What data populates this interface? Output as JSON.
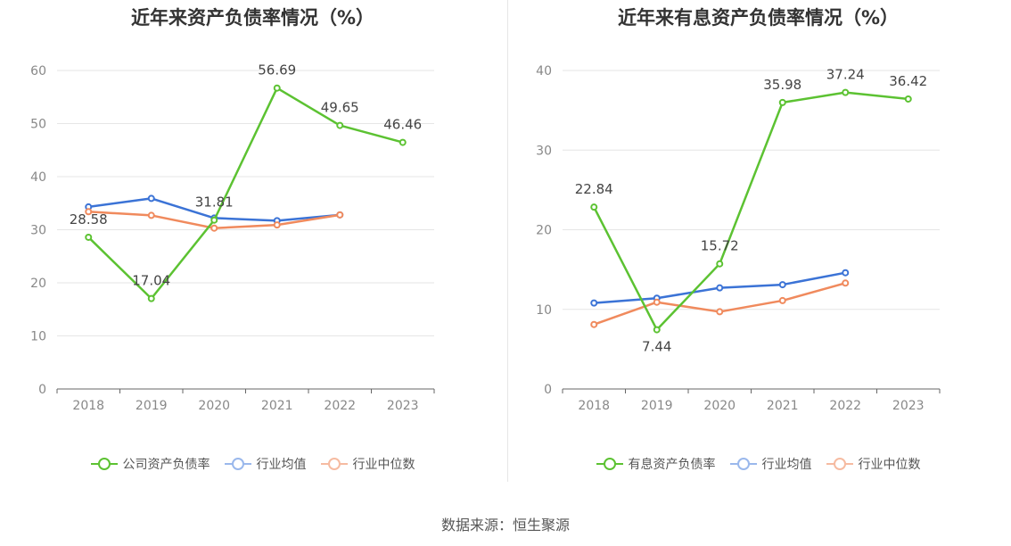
{
  "source": "数据来源：恒生聚源",
  "colors": {
    "company": "#5cc232",
    "avg": "#3b73d6",
    "median": "#f08a5d"
  },
  "chart_data": [
    {
      "type": "line",
      "title": "近年来资产负债率情况（%）",
      "categories": [
        "2018",
        "2019",
        "2020",
        "2021",
        "2022",
        "2023"
      ],
      "ylim": [
        0,
        60
      ],
      "yticks": [
        0,
        10,
        20,
        30,
        40,
        50,
        60
      ],
      "grid": true,
      "legend_position": "bottom",
      "series": [
        {
          "name": "公司资产负债率",
          "key": "company",
          "values": [
            28.58,
            17.04,
            31.81,
            56.69,
            49.65,
            46.46
          ],
          "labels": [
            "28.58",
            "17.04",
            "31.81",
            "56.69",
            "49.65",
            "46.46"
          ]
        },
        {
          "name": "行业均值",
          "key": "avg",
          "values": [
            34.3,
            35.9,
            32.2,
            31.7,
            32.8,
            null
          ]
        },
        {
          "name": "行业中位数",
          "key": "median",
          "values": [
            33.4,
            32.7,
            30.3,
            30.9,
            32.8,
            null
          ]
        }
      ]
    },
    {
      "type": "line",
      "title": "近年来有息资产负债率情况（%）",
      "categories": [
        "2018",
        "2019",
        "2020",
        "2021",
        "2022",
        "2023"
      ],
      "ylim": [
        0,
        40
      ],
      "yticks": [
        0,
        10,
        20,
        30,
        40
      ],
      "grid": true,
      "legend_position": "bottom",
      "series": [
        {
          "name": "有息资产负债率",
          "key": "company",
          "values": [
            22.84,
            7.44,
            15.72,
            35.98,
            37.24,
            36.42
          ],
          "labels": [
            "22.84",
            "7.44",
            "15.72",
            "35.98",
            "37.24",
            "36.42"
          ]
        },
        {
          "name": "行业均值",
          "key": "avg",
          "values": [
            10.8,
            11.4,
            12.7,
            13.1,
            14.6,
            null
          ]
        },
        {
          "name": "行业中位数",
          "key": "median",
          "values": [
            8.1,
            10.9,
            9.7,
            11.1,
            13.3,
            null
          ]
        }
      ]
    }
  ]
}
